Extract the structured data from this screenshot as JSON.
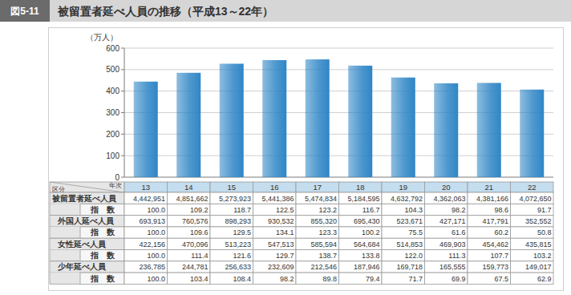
{
  "figure_label": "図5-11",
  "chart_data": {
    "type": "bar",
    "title": "被留置者延べ人員の推移（平成13～22年）",
    "ylabel": "（万人）",
    "categories": [
      "13",
      "14",
      "15",
      "16",
      "17",
      "18",
      "19",
      "20",
      "21",
      "22"
    ],
    "values": [
      444.2951,
      485.1662,
      527.3923,
      544.1386,
      547.4834,
      518.4595,
      463.2792,
      436.2063,
      438.1166,
      407.265
    ],
    "color": "#2f86c6",
    "ylim": [
      0,
      600
    ],
    "yticks": [
      0,
      100,
      200,
      300,
      400,
      500,
      600
    ],
    "grid": true
  },
  "table": {
    "corner_top": "年次",
    "corner_bottom": "区分",
    "groups": [
      {
        "label": "被留置者延べ人員",
        "values": [
          "4,442,951",
          "4,851,662",
          "5,273,923",
          "5,441,386",
          "5,474,834",
          "5,184,595",
          "4,632,792",
          "4,362,063",
          "4,381,166",
          "4,072,650"
        ],
        "index_label": "指　数",
        "index": [
          "100.0",
          "109.2",
          "118.7",
          "122.5",
          "123.2",
          "116.7",
          "104.3",
          "98.2",
          "98.6",
          "91.7"
        ]
      },
      {
        "label": "外国人延べ人員",
        "values": [
          "693,913",
          "760,576",
          "898,293",
          "930,532",
          "855,320",
          "695,430",
          "523,671",
          "427,171",
          "417,791",
          "352,552"
        ],
        "index_label": "指　数",
        "index": [
          "100.0",
          "109.6",
          "129.5",
          "134.1",
          "123.3",
          "100.2",
          "75.5",
          "61.6",
          "60.2",
          "50.8"
        ]
      },
      {
        "label": "女性延べ人員",
        "values": [
          "422,156",
          "470,096",
          "513,223",
          "547,513",
          "585,594",
          "564,684",
          "514,853",
          "469,903",
          "454,462",
          "435,815"
        ],
        "index_label": "指　数",
        "index": [
          "100.0",
          "111.4",
          "121.6",
          "129.7",
          "138.7",
          "133.8",
          "122.0",
          "111.3",
          "107.7",
          "103.2"
        ]
      },
      {
        "label": "少年延べ人員",
        "values": [
          "236,785",
          "244,781",
          "256,633",
          "232,609",
          "212,546",
          "187,946",
          "169,718",
          "165,555",
          "159,773",
          "149,017"
        ],
        "index_label": "指　数",
        "index": [
          "100.0",
          "103.4",
          "108.4",
          "98.2",
          "89.8",
          "79.4",
          "71.7",
          "69.9",
          "67.5",
          "62.9"
        ]
      }
    ]
  }
}
